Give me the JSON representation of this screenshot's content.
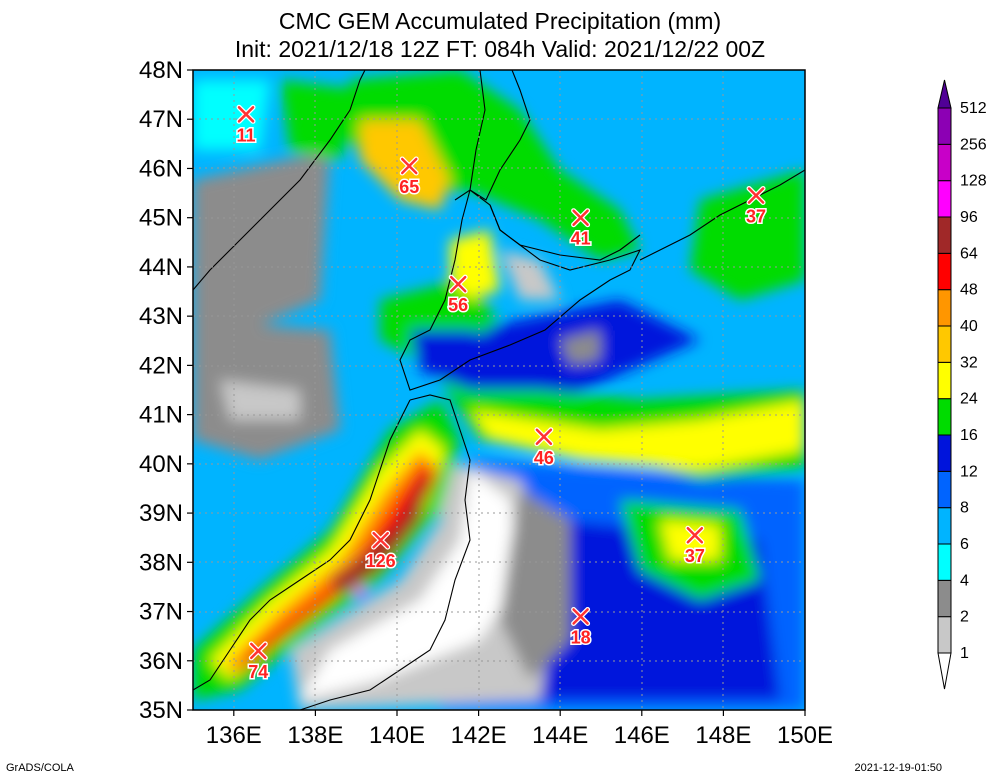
{
  "title": {
    "line1": "CMC GEM Accumulated Precipitation (mm)",
    "line2": "Init: 2021/12/18 12Z  FT: 084h  Valid: 2021/12/22 00Z"
  },
  "map": {
    "lon_range": [
      135,
      150
    ],
    "lat_range": [
      35,
      48
    ],
    "lat_ticks": [
      "35N",
      "36N",
      "37N",
      "38N",
      "39N",
      "40N",
      "41N",
      "42N",
      "43N",
      "44N",
      "45N",
      "46N",
      "47N",
      "48N"
    ],
    "lon_ticks": [
      "136E",
      "138E",
      "140E",
      "142E",
      "144E",
      "146E",
      "148E",
      "150E"
    ],
    "grid": true
  },
  "colorbar": {
    "levels": [
      "1",
      "2",
      "4",
      "6",
      "8",
      "12",
      "16",
      "24",
      "32",
      "40",
      "48",
      "64",
      "96",
      "128",
      "256",
      "512"
    ],
    "colors": [
      "#ffffff",
      "#c8c8c8",
      "#8c8c8c",
      "#00ffff",
      "#00b4ff",
      "#0064ff",
      "#0014dc",
      "#00dc00",
      "#ffff00",
      "#ffc800",
      "#ff9600",
      "#ff0000",
      "#a02828",
      "#ff00ff",
      "#c800c8",
      "#8c00b4",
      "#500096"
    ]
  },
  "markers": [
    {
      "lon": 136.3,
      "lat": 47.1,
      "value": "11"
    },
    {
      "lon": 140.3,
      "lat": 46.05,
      "value": "65"
    },
    {
      "lon": 144.5,
      "lat": 45.0,
      "value": "41"
    },
    {
      "lon": 148.8,
      "lat": 45.45,
      "value": "37"
    },
    {
      "lon": 141.5,
      "lat": 43.65,
      "value": "56"
    },
    {
      "lon": 143.6,
      "lat": 40.55,
      "value": "46"
    },
    {
      "lon": 139.6,
      "lat": 38.45,
      "value": "126"
    },
    {
      "lon": 147.3,
      "lat": 38.55,
      "value": "37"
    },
    {
      "lon": 144.5,
      "lat": 36.9,
      "value": "18"
    },
    {
      "lon": 136.6,
      "lat": 36.2,
      "value": "74"
    }
  ],
  "footer": {
    "left": "GrADS/COLA",
    "right": "2021-12-19-01:50"
  }
}
